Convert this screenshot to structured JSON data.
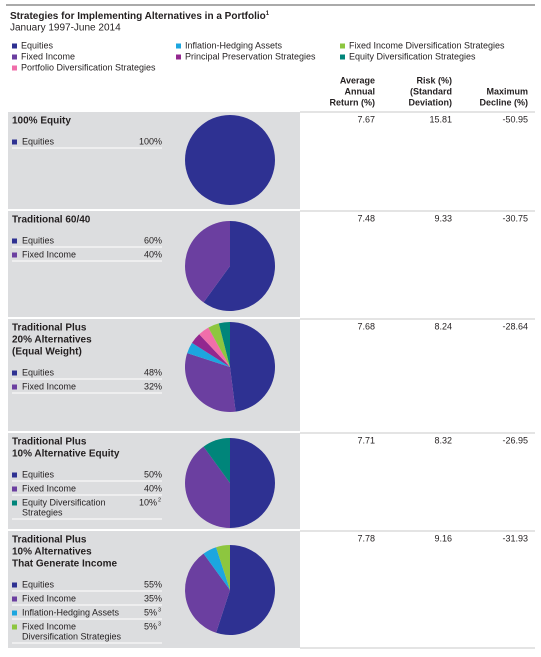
{
  "header": {
    "title": "Strategies for Implementing Alternatives in a Portfolio",
    "title_note": "1",
    "subtitle": "January 1997-June 2014"
  },
  "legend": [
    {
      "label": "Equities",
      "color": "#2e3192"
    },
    {
      "label": "Fixed Income",
      "color": "#6b3fa0"
    },
    {
      "label": "Portfolio Diversification Strategies",
      "color": "#f06eaa"
    },
    {
      "label": "Inflation-Hedging Assets",
      "color": "#1ca6df"
    },
    {
      "label": "Principal Preservation Strategies",
      "color": "#93278f"
    },
    {
      "label": "Fixed Income Diversification Strategies",
      "color": "#8dc63f"
    },
    {
      "label": "Equity Diversification Strategies",
      "color": "#00857a"
    }
  ],
  "columns": [
    [
      "Average",
      "Annual",
      "Return (%)"
    ],
    [
      "Risk (%)",
      "(Standard",
      "Deviation)"
    ],
    [
      "Maximum",
      "Decline (%)"
    ]
  ],
  "rows": [
    {
      "name": [
        "100% Equity"
      ],
      "allocations": [
        {
          "label": [
            "Equities"
          ],
          "value": 100,
          "value_label": "100%",
          "color": "#2e3192"
        }
      ],
      "other_slices": [],
      "metrics": [
        7.67,
        15.81,
        -50.95
      ]
    },
    {
      "name": [
        "Traditional 60/40"
      ],
      "allocations": [
        {
          "label": [
            "Equities"
          ],
          "value": 60,
          "value_label": "60%",
          "color": "#2e3192"
        },
        {
          "label": [
            "Fixed Income"
          ],
          "value": 40,
          "value_label": "40%",
          "color": "#6b3fa0"
        }
      ],
      "other_slices": [],
      "metrics": [
        7.48,
        9.33,
        -30.75
      ]
    },
    {
      "name": [
        "Traditional Plus",
        "20% Alternatives",
        "(Equal Weight)"
      ],
      "allocations": [
        {
          "label": [
            "Equities"
          ],
          "value": 48,
          "value_label": "48%",
          "color": "#2e3192"
        },
        {
          "label": [
            "Fixed Income"
          ],
          "value": 32,
          "value_label": "32%",
          "color": "#6b3fa0"
        }
      ],
      "other_slices": [
        {
          "value": 4,
          "color": "#1ca6df"
        },
        {
          "value": 4,
          "color": "#93278f"
        },
        {
          "value": 4,
          "color": "#f06eaa"
        },
        {
          "value": 4,
          "color": "#8dc63f"
        },
        {
          "value": 4,
          "color": "#00857a"
        }
      ],
      "metrics": [
        7.68,
        8.24,
        -28.64
      ]
    },
    {
      "name": [
        "Traditional Plus",
        "10% Alternative Equity"
      ],
      "allocations": [
        {
          "label": [
            "Equities"
          ],
          "value": 50,
          "value_label": "50%",
          "color": "#2e3192"
        },
        {
          "label": [
            "Fixed Income"
          ],
          "value": 40,
          "value_label": "40%",
          "color": "#6b3fa0"
        },
        {
          "label": [
            "Equity Diversification",
            "Strategies"
          ],
          "value": 10,
          "value_label": "10%",
          "note": "2",
          "color": "#00857a"
        }
      ],
      "other_slices": [],
      "metrics": [
        7.71,
        8.32,
        -26.95
      ]
    },
    {
      "name": [
        "Traditional Plus",
        "10% Alternatives",
        "That Generate Income"
      ],
      "allocations": [
        {
          "label": [
            "Equities"
          ],
          "value": 55,
          "value_label": "55%",
          "color": "#2e3192"
        },
        {
          "label": [
            "Fixed Income"
          ],
          "value": 35,
          "value_label": "35%",
          "color": "#6b3fa0"
        },
        {
          "label": [
            "Inflation-Hedging Assets"
          ],
          "value": 5,
          "value_label": "5%",
          "note": "3",
          "color": "#1ca6df"
        },
        {
          "label": [
            "Fixed Income",
            "Diversification Strategies"
          ],
          "value": 5,
          "value_label": "5%",
          "note": "3",
          "color": "#8dc63f"
        }
      ],
      "other_slices": [],
      "metrics": [
        7.78,
        9.16,
        -31.93
      ]
    }
  ]
}
